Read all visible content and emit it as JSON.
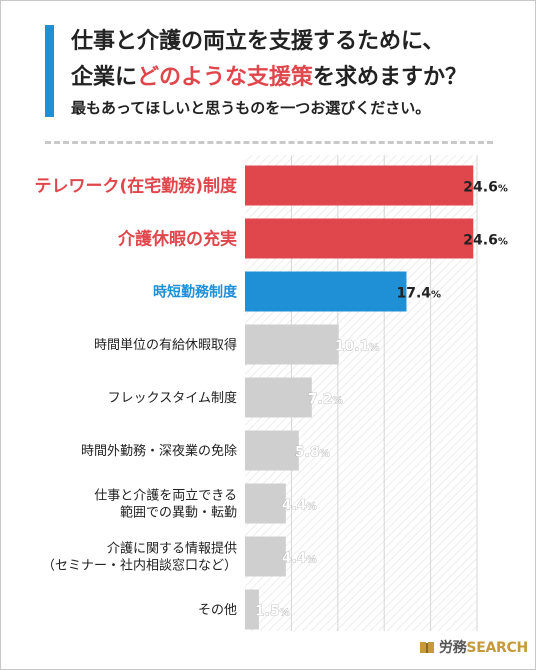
{
  "header": {
    "line1": "仕事と介護の両立を支援するために、",
    "line2_prefix": "企業に",
    "line2_highlight": "どのような支援策",
    "line2_suffix": "を求めますか？",
    "line3": "最もあってほしいと思うものを一つお選びください。"
  },
  "brand": {
    "name_jp": "労務",
    "name_en": "SEARCH",
    "logo_icon": "book-icon"
  },
  "colors": {
    "red": "#e0474c",
    "blue": "#1f8fd6",
    "gray": "#cfcfcf",
    "label_dark": "#222222"
  },
  "chart_data": {
    "type": "bar",
    "orientation": "horizontal",
    "categories": [
      [
        "テレワーク(在宅勤務)制度"
      ],
      [
        "介護休暇の充実"
      ],
      [
        "時短勤務制度"
      ],
      [
        "時間単位の有給休暇取得"
      ],
      [
        "フレックスタイム制度"
      ],
      [
        "時間外勤務・深夜業の免除"
      ],
      [
        "仕事と介護を両立できる",
        "範囲での異動・転勤"
      ],
      [
        "介護に関する情報提供",
        "（セミナー・社内相談窓口など）"
      ],
      [
        "その他"
      ]
    ],
    "values": [
      24.6,
      24.6,
      17.4,
      10.1,
      7.2,
      5.8,
      4.4,
      4.4,
      1.5
    ],
    "value_labels": [
      "24.6%",
      "24.6%",
      "17.4%",
      "10.1%",
      "7.2%",
      "5.8%",
      "4.4%",
      "4.4%",
      "1.5%"
    ],
    "highlight": [
      "red",
      "red",
      "blue",
      "gray",
      "gray",
      "gray",
      "gray",
      "gray",
      "gray"
    ],
    "xlim": [
      0,
      25
    ],
    "xticks": [
      5,
      10,
      15,
      20,
      25
    ],
    "grid": "vertical"
  }
}
